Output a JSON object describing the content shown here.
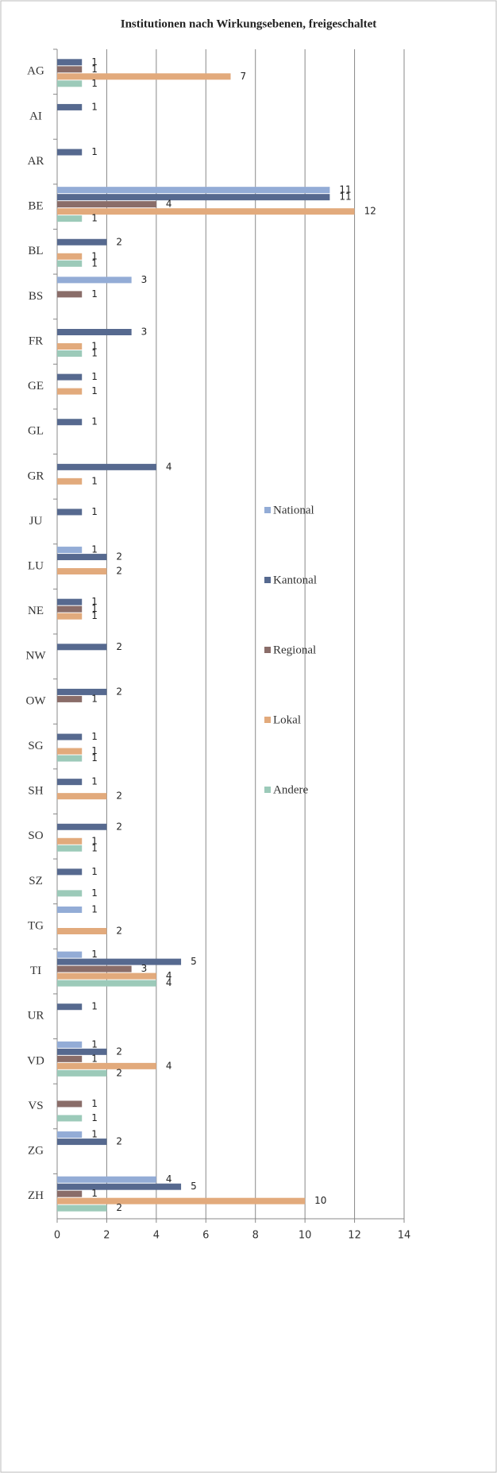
{
  "chart_data": {
    "type": "bar",
    "orientation": "horizontal",
    "title": "Institutionen nach Wirkungsebenen, freigeschaltet",
    "categories": [
      "AG",
      "AI",
      "AR",
      "BE",
      "BL",
      "BS",
      "FR",
      "GE",
      "GL",
      "GR",
      "JU",
      "LU",
      "NE",
      "NW",
      "OW",
      "SG",
      "SH",
      "SO",
      "SZ",
      "TG",
      "TI",
      "UR",
      "VD",
      "VS",
      "ZG",
      "ZH"
    ],
    "series": [
      {
        "name": "National",
        "color": "#93acd6",
        "values": [
          null,
          null,
          null,
          11,
          null,
          3,
          null,
          null,
          null,
          null,
          null,
          1,
          null,
          null,
          null,
          null,
          null,
          null,
          null,
          1,
          1,
          null,
          1,
          null,
          1,
          4
        ]
      },
      {
        "name": "Kantonal",
        "color": "#56698f",
        "values": [
          1,
          1,
          1,
          11,
          2,
          null,
          3,
          1,
          1,
          4,
          1,
          2,
          1,
          2,
          2,
          1,
          1,
          2,
          1,
          null,
          5,
          1,
          2,
          null,
          2,
          5
        ]
      },
      {
        "name": "Regional",
        "color": "#8a6d69",
        "values": [
          1,
          null,
          null,
          4,
          null,
          1,
          null,
          null,
          null,
          null,
          null,
          null,
          1,
          null,
          1,
          null,
          null,
          null,
          null,
          null,
          3,
          null,
          1,
          1,
          null,
          1
        ]
      },
      {
        "name": "Lokal",
        "color": "#e2aa7c",
        "values": [
          7,
          null,
          null,
          12,
          1,
          null,
          1,
          1,
          null,
          1,
          null,
          2,
          1,
          null,
          null,
          1,
          2,
          1,
          null,
          2,
          4,
          null,
          4,
          null,
          null,
          10
        ]
      },
      {
        "name": "Andere",
        "color": "#9ccab9",
        "values": [
          1,
          null,
          null,
          1,
          1,
          null,
          1,
          null,
          null,
          null,
          null,
          null,
          null,
          null,
          null,
          1,
          null,
          1,
          1,
          null,
          4,
          null,
          2,
          1,
          null,
          2
        ]
      }
    ],
    "xlim": [
      0,
      14
    ],
    "xticks": [
      0,
      2,
      4,
      6,
      8,
      10,
      12,
      14
    ],
    "grid": true,
    "legend": "right"
  }
}
